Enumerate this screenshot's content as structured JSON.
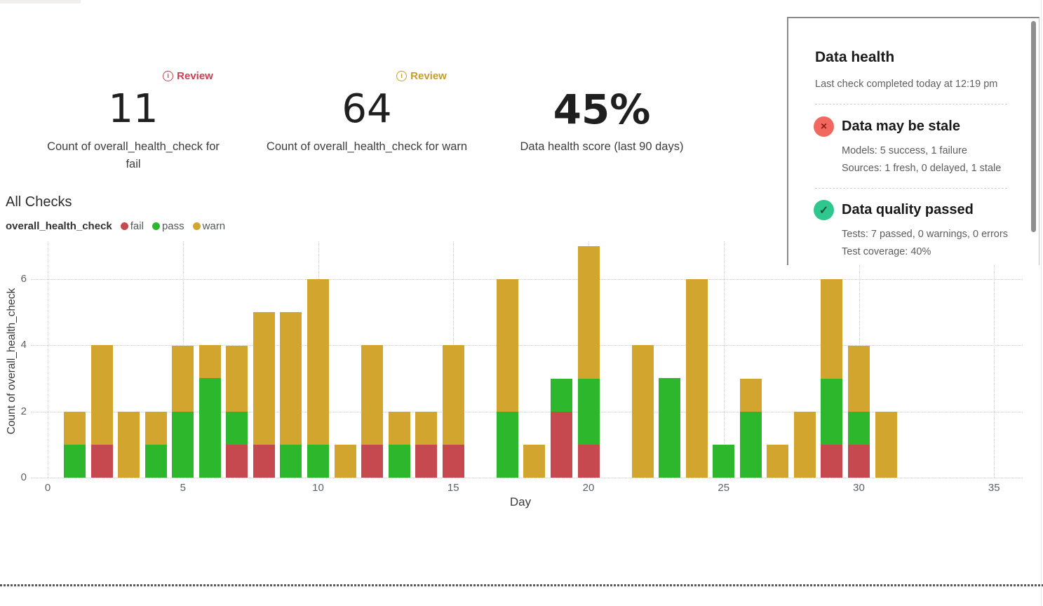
{
  "metrics": [
    {
      "badge": "Review",
      "badge_color": "#c7414e",
      "value": "11",
      "label": "Count of overall_health_check for fail"
    },
    {
      "badge": "Review",
      "badge_color": "#c79d27",
      "value": "64",
      "label": "Count of overall_health_check for warn"
    },
    {
      "value": "45%",
      "label": "Data health score (last 90 days)"
    }
  ],
  "chart_data": {
    "type": "bar",
    "stacked": true,
    "title": "All Checks",
    "measure": "overall_health_check",
    "xlabel": "Day",
    "ylabel": "Count of overall_health_check",
    "x": [
      1,
      2,
      3,
      4,
      5,
      6,
      7,
      8,
      9,
      10,
      11,
      12,
      13,
      14,
      15,
      16,
      17,
      18,
      19,
      20,
      21,
      22,
      23,
      24,
      25,
      26,
      27,
      28,
      29,
      30,
      31
    ],
    "series": [
      {
        "name": "fail",
        "color": "#c5494f",
        "values": [
          0,
          1,
          0,
          0,
          0,
          0,
          1,
          1,
          0,
          0,
          0,
          1,
          0,
          1,
          1,
          0,
          0,
          0,
          2,
          1,
          0,
          0,
          0,
          0,
          0,
          0,
          0,
          0,
          1,
          1,
          0
        ]
      },
      {
        "name": "pass",
        "color": "#2cb72c",
        "values": [
          1,
          0,
          0,
          1,
          2,
          3,
          1,
          0,
          1,
          1,
          0,
          0,
          1,
          0,
          0,
          0,
          2,
          0,
          1,
          2,
          0,
          0,
          3,
          0,
          1,
          2,
          0,
          0,
          2,
          1,
          0
        ]
      },
      {
        "name": "warn",
        "color": "#d1a52e",
        "values": [
          1,
          3,
          2,
          1,
          2,
          1,
          2,
          4,
          4,
          5,
          1,
          3,
          1,
          1,
          3,
          0,
          4,
          1,
          0,
          4,
          0,
          4,
          0,
          6,
          0,
          1,
          1,
          2,
          3,
          2,
          2
        ]
      }
    ],
    "xticks": [
      0,
      5,
      10,
      15,
      20,
      25,
      30,
      35
    ],
    "yticks": [
      0,
      2,
      4,
      6
    ],
    "xlim": [
      0,
      35
    ],
    "ylim": [
      0,
      7
    ],
    "grid": "dotted",
    "legend_position": "top-left"
  },
  "health_panel": {
    "title": "Data health",
    "subtitle": "Last check completed today at 12:19 pm",
    "items": [
      {
        "icon": "x-circle",
        "icon_color": "#f2685e",
        "glyph": "×",
        "title": "Data may be stale",
        "lines": [
          "Models: 5 success, 1 failure",
          "Sources: 1 fresh, 0 delayed, 1 stale"
        ]
      },
      {
        "icon": "check-circle",
        "icon_color": "#2ec78e",
        "glyph": "✓",
        "title": "Data quality passed",
        "lines": [
          "Tests: 7 passed, 0 warnings, 0 errors",
          "Test coverage: 40%"
        ]
      }
    ]
  }
}
